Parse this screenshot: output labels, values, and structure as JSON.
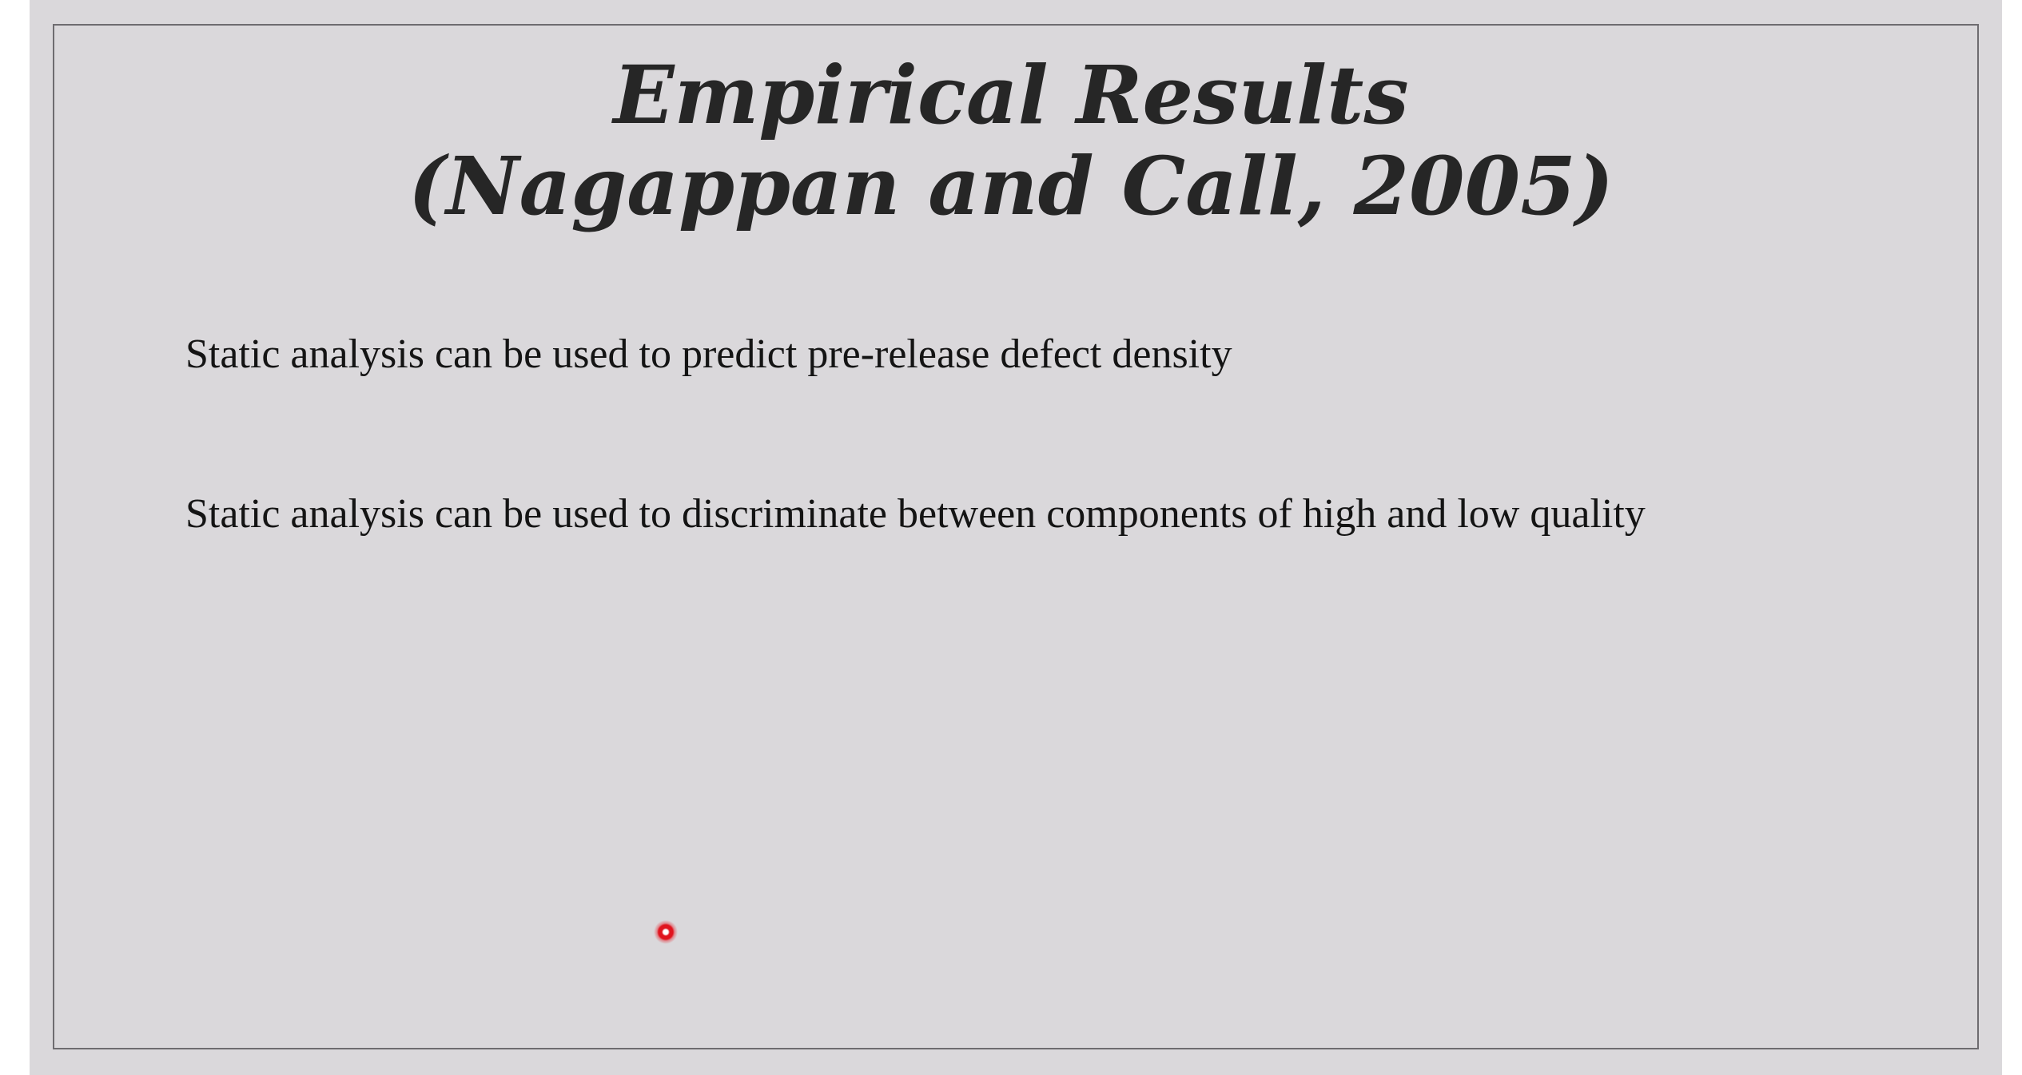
{
  "slide": {
    "title_line1": "Empirical Results",
    "title_line2": "(Nagappan and Call, 2005)",
    "bullets": [
      "Static analysis can be used to predict pre-release defect density",
      "Static analysis can be used to discriminate between components of high and low quality"
    ]
  },
  "colors": {
    "slide_background": "#dad8db",
    "title": "#262626",
    "body_text": "#141414",
    "laser_pointer": "#e0141e"
  }
}
